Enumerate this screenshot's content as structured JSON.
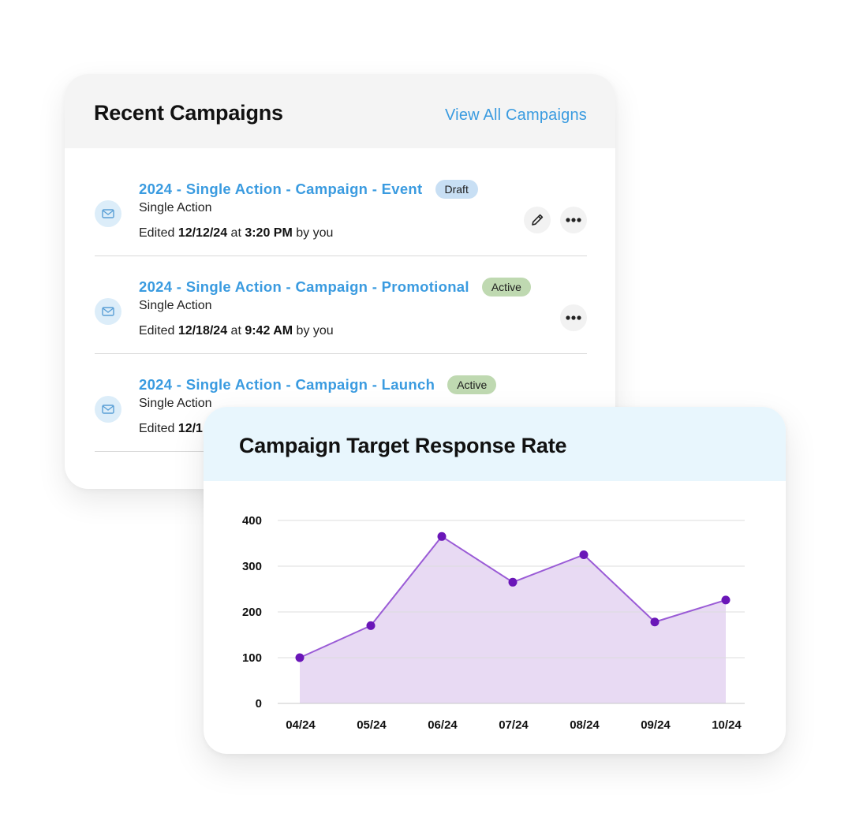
{
  "campaigns": {
    "title": "Recent Campaigns",
    "view_all_label": "View All Campaigns",
    "rows": [
      {
        "title": "2024 - Single Action - Campaign - Event",
        "badge": "Draft",
        "type": "Single Action",
        "edited_prefix": "Edited ",
        "date": "12/12/24",
        "at": " at ",
        "time": "3:20 PM",
        "by": " by you",
        "actions": [
          "edit",
          "more"
        ]
      },
      {
        "title": "2024 - Single Action - Campaign - Promotional",
        "badge": "Active",
        "type": "Single Action",
        "edited_prefix": "Edited ",
        "date": "12/18/24",
        "at": " at ",
        "time": "9:42 AM",
        "by": " by you",
        "actions": [
          "more"
        ]
      },
      {
        "title": "2024 - Single Action - Campaign - Launch",
        "badge": "Active",
        "type": "Single Action",
        "edited_prefix": "Edited ",
        "date": "12/1",
        "at": "",
        "time": "",
        "by": "",
        "actions": []
      }
    ],
    "icons": {
      "row": "envelope-icon",
      "edit": "pencil-icon",
      "more": "more-horizontal-icon"
    }
  },
  "chart": {
    "title": "Campaign Target Response Rate"
  },
  "chart_data": {
    "type": "area",
    "categories": [
      "04/24",
      "05/24",
      "06/24",
      "07/24",
      "08/24",
      "09/24",
      "10/24"
    ],
    "values": [
      100,
      170,
      365,
      265,
      325,
      178,
      226
    ],
    "ylim": [
      0,
      400
    ],
    "yticks": [
      0,
      100,
      200,
      300,
      400
    ],
    "grid": true,
    "line_color": "#9a5bd6",
    "marker_color": "#6a16b8",
    "fill_color": "#e8daf3"
  },
  "colors": {
    "link": "#3a9be0",
    "draft_badge": "#c8dff4",
    "active_badge": "#bfd9b1",
    "chart_header": "#e8f6fd"
  }
}
